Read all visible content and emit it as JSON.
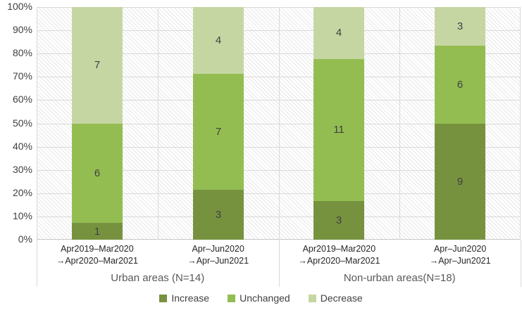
{
  "chart_data": {
    "type": "bar",
    "variant": "100-percent-stacked-column",
    "title": "",
    "y_ticks": [
      "100%",
      "90%",
      "80%",
      "70%",
      "60%",
      "50%",
      "40%",
      "30%",
      "20%",
      "10%",
      "0%"
    ],
    "ylim": [
      0,
      100
    ],
    "grid": true,
    "plot_background": "diagonal-hatch",
    "legend_position": "bottom",
    "categories": [
      {
        "line1": "Apr2019–Mar2020",
        "line2": "→Apr2020–Mar2021"
      },
      {
        "line1": "Apr–Jun2020",
        "line2": "→Apr–Jun2021"
      },
      {
        "line1": "Apr2019–Mar2020",
        "line2": "→Apr2020–Mar2021"
      },
      {
        "line1": "Apr–Jun2020",
        "line2": "→Apr–Jun2021"
      }
    ],
    "groups": [
      {
        "label": "Urban areas (N=14)",
        "span": 2
      },
      {
        "label": "Non-urban areas(N=18)",
        "span": 2
      }
    ],
    "series": [
      {
        "name": "Increase",
        "color": "#77923f",
        "values": [
          1,
          3,
          3,
          9
        ]
      },
      {
        "name": "Unchanged",
        "color": "#93bd51",
        "values": [
          6,
          7,
          11,
          6
        ]
      },
      {
        "name": "Decrease",
        "color": "#c6d6a3",
        "values": [
          7,
          4,
          4,
          3
        ]
      }
    ],
    "totals": [
      14,
      14,
      18,
      18
    ],
    "colors": {
      "gridline": "#d9d9d9",
      "axis_line": "#c6c6c6",
      "hatch_line": "#e7e7e7",
      "value_label": "#404040",
      "tick_label": "#404040",
      "category_label": "#262626",
      "group_label": "#595959",
      "legend_label": "#404040"
    }
  }
}
